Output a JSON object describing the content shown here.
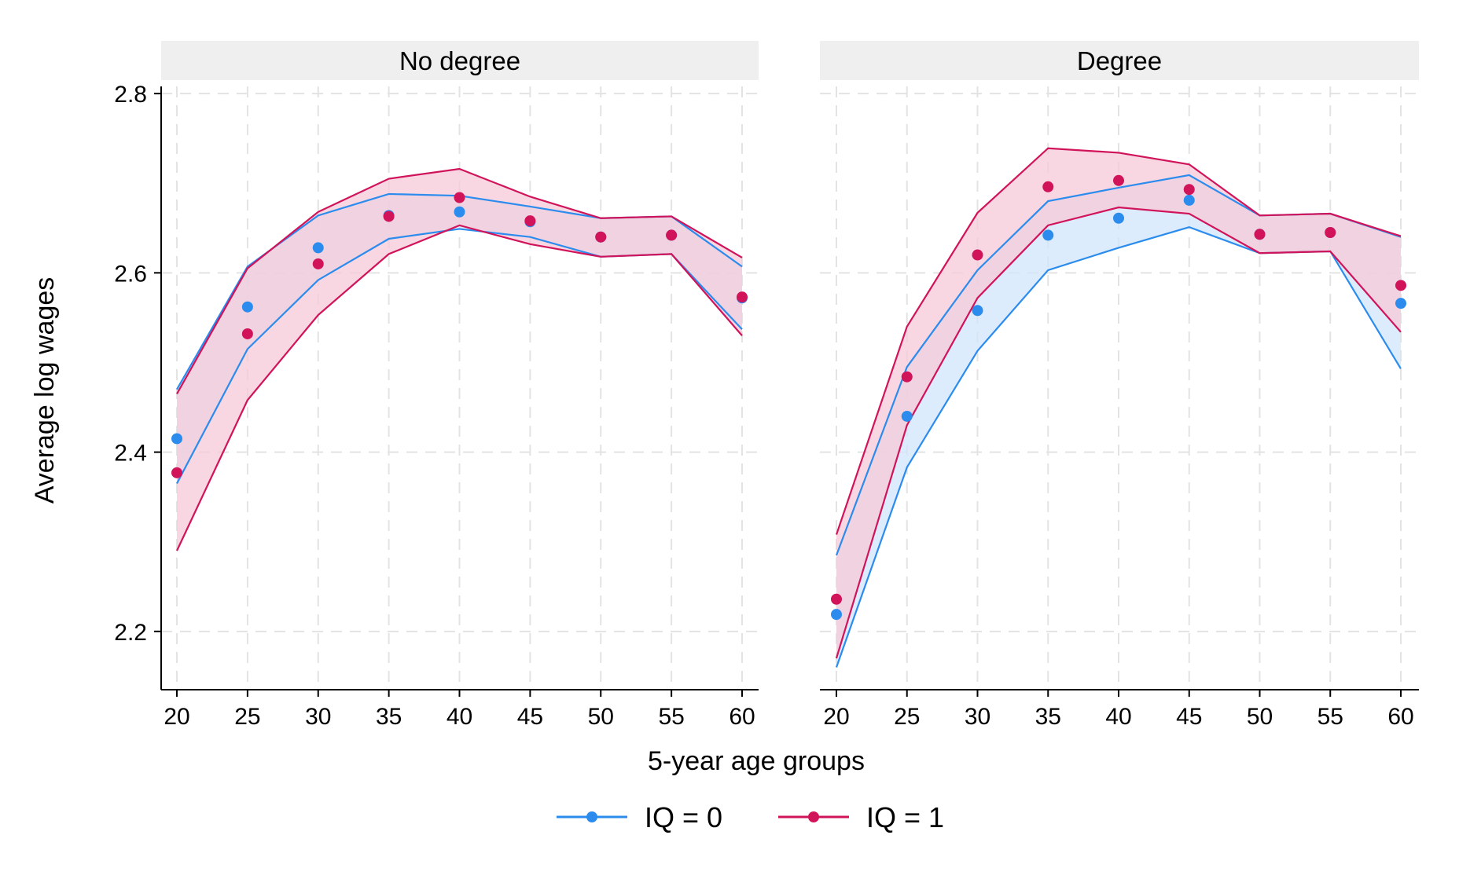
{
  "chart_data": {
    "type": "line",
    "xlabel": "5-year age groups",
    "ylabel": "Average log wages",
    "x": [
      20,
      25,
      30,
      35,
      40,
      45,
      50,
      55,
      60
    ],
    "x_ticks": [
      "20",
      "25",
      "30",
      "35",
      "40",
      "45",
      "50",
      "55",
      "60"
    ],
    "ylim": [
      2.135,
      2.815
    ],
    "y_ticks": [
      "2.2",
      "2.4",
      "2.6",
      "2.8"
    ],
    "y_tick_values": [
      2.2,
      2.4,
      2.6,
      2.8
    ],
    "grid": true,
    "legend_position": "bottom",
    "legend": [
      "IQ = 0",
      "IQ = 1"
    ],
    "colors": {
      "IQ = 0": "#2b8cee",
      "IQ = 1": "#d1135a",
      "band_IQ = 0": "#d2e6fb",
      "band_IQ = 1": "#f6cad8",
      "strip": "#efefef",
      "grid": "#e3e3e3"
    },
    "panels": [
      {
        "title": "No degree",
        "series": [
          {
            "name": "IQ = 0",
            "values": [
              2.415,
              2.562,
              2.628,
              2.664,
              2.668,
              2.657,
              2.64,
              2.642,
              2.572
            ],
            "upper": [
              2.47,
              2.607,
              2.664,
              2.688,
              2.686,
              2.674,
              2.661,
              2.663,
              2.607
            ],
            "lower": [
              2.365,
              2.515,
              2.592,
              2.638,
              2.649,
              2.64,
              2.618,
              2.621,
              2.537
            ]
          },
          {
            "name": "IQ = 1",
            "values": [
              2.377,
              2.532,
              2.61,
              2.663,
              2.684,
              2.658,
              2.64,
              2.642,
              2.573
            ],
            "upper": [
              2.465,
              2.605,
              2.668,
              2.705,
              2.716,
              2.685,
              2.661,
              2.663,
              2.617
            ],
            "lower": [
              2.29,
              2.458,
              2.553,
              2.621,
              2.653,
              2.632,
              2.618,
              2.621,
              2.53
            ]
          }
        ]
      },
      {
        "title": "Degree",
        "series": [
          {
            "name": "IQ = 0",
            "values": [
              2.219,
              2.44,
              2.558,
              2.642,
              2.661,
              2.681,
              2.643,
              2.645,
              2.566
            ],
            "upper": [
              2.285,
              2.495,
              2.603,
              2.68,
              2.695,
              2.709,
              2.664,
              2.666,
              2.64
            ],
            "lower": [
              2.16,
              2.383,
              2.513,
              2.603,
              2.628,
              2.651,
              2.622,
              2.624,
              2.493
            ]
          },
          {
            "name": "IQ = 1",
            "values": [
              2.236,
              2.484,
              2.62,
              2.696,
              2.703,
              2.693,
              2.643,
              2.645,
              2.586
            ],
            "upper": [
              2.308,
              2.54,
              2.667,
              2.739,
              2.734,
              2.721,
              2.664,
              2.666,
              2.641
            ],
            "lower": [
              2.17,
              2.43,
              2.572,
              2.653,
              2.673,
              2.666,
              2.622,
              2.624,
              2.534
            ]
          }
        ]
      }
    ]
  }
}
